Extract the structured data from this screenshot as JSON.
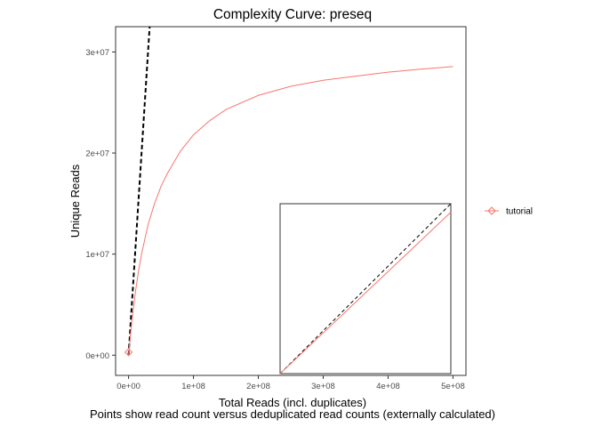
{
  "chart_data": {
    "type": "line",
    "title": "Complexity Curve: preseq",
    "xlabel": "Total Reads (incl. duplicates)",
    "ylabel": "Unique Reads",
    "caption": "Points show read count versus deduplicated read counts (externally calculated)",
    "xlim": [
      -20000000,
      520000000
    ],
    "ylim": [
      -2000000,
      32500000
    ],
    "x_ticks": [
      {
        "value": 0,
        "label": "0e+00"
      },
      {
        "value": 100000000,
        "label": "1e+08"
      },
      {
        "value": 200000000,
        "label": "2e+08"
      },
      {
        "value": 300000000,
        "label": "3e+08"
      },
      {
        "value": 400000000,
        "label": "4e+08"
      },
      {
        "value": 500000000,
        "label": "5e+08"
      }
    ],
    "y_ticks": [
      {
        "value": 0,
        "label": "0e+00"
      },
      {
        "value": 10000000,
        "label": "1e+07"
      },
      {
        "value": 20000000,
        "label": "2e+07"
      },
      {
        "value": 30000000,
        "label": "3e+07"
      }
    ],
    "grid": false,
    "legend_position": "right",
    "series": [
      {
        "name": "tutorial",
        "color": "#f8766d",
        "x": [
          0,
          2000000,
          5000000,
          10000000,
          15000000,
          20000000,
          30000000,
          40000000,
          50000000,
          60000000,
          80000000,
          100000000,
          125000000,
          150000000,
          200000000,
          250000000,
          300000000,
          350000000,
          400000000,
          450000000,
          500000000
        ],
        "y": [
          0,
          1400000,
          3300000,
          6000000,
          8200000,
          10000000,
          12900000,
          15000000,
          16700000,
          18000000,
          20200000,
          21800000,
          23200000,
          24300000,
          25700000,
          26600000,
          27200000,
          27600000,
          28000000,
          28300000,
          28550000
        ]
      }
    ],
    "reference_line": {
      "style": "dashed",
      "color": "#000000",
      "x": [
        0,
        32500000
      ],
      "y": [
        0,
        32500000
      ]
    },
    "points": [
      {
        "series": "tutorial",
        "x": 0,
        "y": 300000
      }
    ],
    "inset": {
      "series": {
        "name": "tutorial",
        "color": "#f8766d",
        "x": [
          0,
          0.2,
          0.4,
          0.6,
          0.8,
          1.0
        ],
        "y": [
          0,
          0.19,
          0.38,
          0.57,
          0.76,
          0.95
        ]
      },
      "reference_line": {
        "style": "dashed",
        "color": "#000000",
        "x": [
          0,
          1
        ],
        "y": [
          0,
          1
        ]
      }
    }
  }
}
